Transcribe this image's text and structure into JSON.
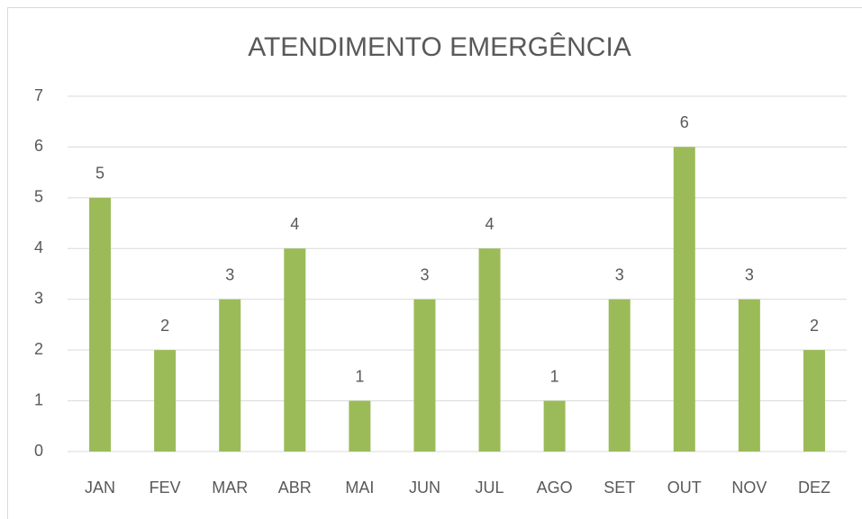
{
  "chart_data": {
    "type": "bar",
    "title": "ATENDIMENTO EMERGÊNCIA",
    "categories": [
      "JAN",
      "FEV",
      "MAR",
      "ABR",
      "MAI",
      "JUN",
      "JUL",
      "AGO",
      "SET",
      "OUT",
      "NOV",
      "DEZ"
    ],
    "values": [
      5,
      2,
      3,
      4,
      1,
      3,
      4,
      1,
      3,
      6,
      3,
      2
    ],
    "color": "#9bbb59",
    "ylim": [
      0,
      7
    ],
    "yticks": [
      0,
      1,
      2,
      3,
      4,
      5,
      6,
      7
    ],
    "grid": true,
    "data_labels": true
  }
}
